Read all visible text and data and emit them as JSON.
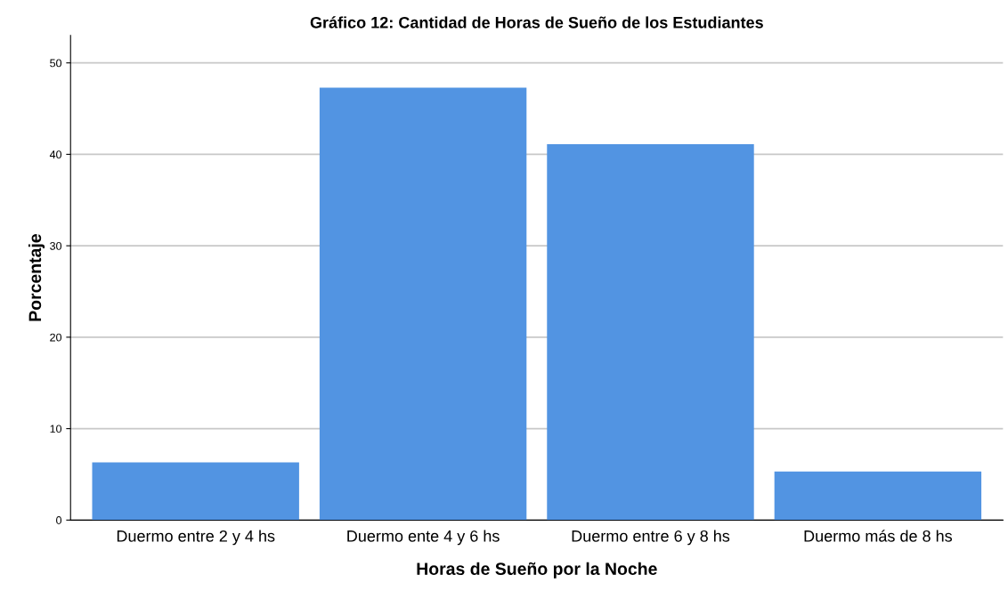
{
  "chart_data": {
    "type": "bar",
    "title": "Gráfico 12: Cantidad de Horas de Sueño de los Estudiantes",
    "xlabel": "Horas de Sueño por la Noche",
    "ylabel": "Porcentaje",
    "categories": [
      "Duermo entre 2 y 4 hs",
      "Duermo ente 4 y 6 hs",
      "Duermo entre 6 y 8 hs",
      "Duermo más de 8 hs"
    ],
    "values": [
      6.3,
      47.3,
      41.1,
      5.3
    ],
    "color": "#5294e2",
    "ylim": [
      0,
      53
    ],
    "yticks": [
      0,
      10,
      20,
      30,
      40,
      50
    ],
    "grid": "y"
  }
}
